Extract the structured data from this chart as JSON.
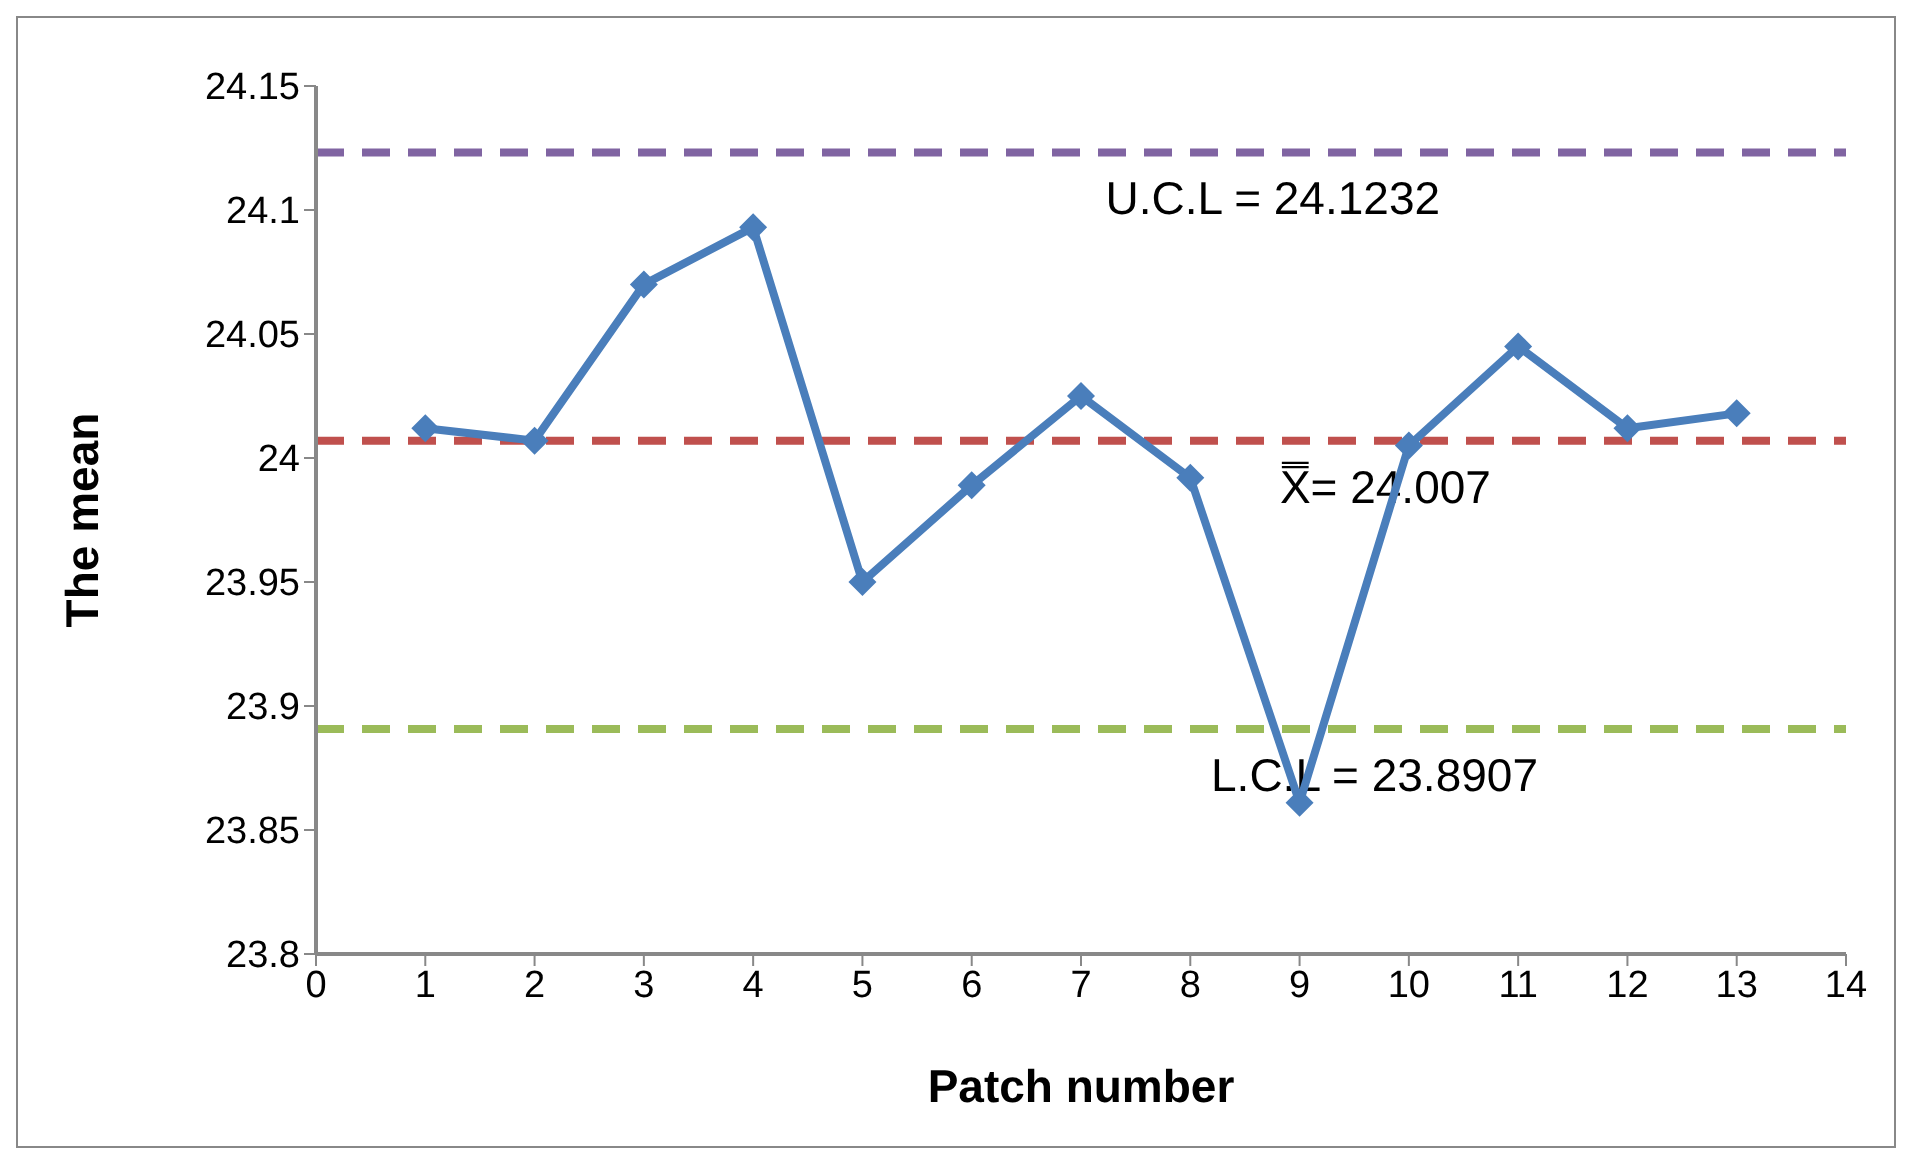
{
  "chart_data": {
    "type": "line",
    "xlabel": "Patch number",
    "ylabel": "The mean",
    "x": [
      1,
      2,
      3,
      4,
      5,
      6,
      7,
      8,
      9,
      10,
      11,
      12,
      13
    ],
    "series": [
      {
        "color": "#4a7ebb",
        "values": [
          24.012,
          24.007,
          24.07,
          24.093,
          23.95,
          23.989,
          24.025,
          23.992,
          23.861,
          24.005,
          24.045,
          24.012,
          24.018
        ]
      }
    ],
    "xlim": [
      0,
      14
    ],
    "xticks": [
      0,
      1,
      2,
      3,
      4,
      5,
      6,
      7,
      8,
      9,
      10,
      11,
      12,
      13,
      14
    ],
    "ylim": [
      23.8,
      24.15
    ],
    "yticks": [
      23.8,
      23.85,
      23.9,
      23.95,
      24,
      24.05,
      24.1,
      24.15
    ],
    "ref_lines": [
      {
        "axis": "y",
        "value": 24.1232,
        "label": "U.C.L = 24.1232",
        "color": "#8064a2",
        "line_style": "dashed"
      },
      {
        "axis": "y",
        "value": 24.007,
        "label": "X̿= 24.007",
        "color": "#c0504d",
        "line_style": "dashed"
      },
      {
        "axis": "y",
        "value": 23.8907,
        "label": "L.C.L = 23.8907",
        "color": "#9bbb59",
        "line_style": "dashed"
      }
    ],
    "grid": false,
    "legend": false,
    "marker": "diamond",
    "line_style": "solid"
  }
}
